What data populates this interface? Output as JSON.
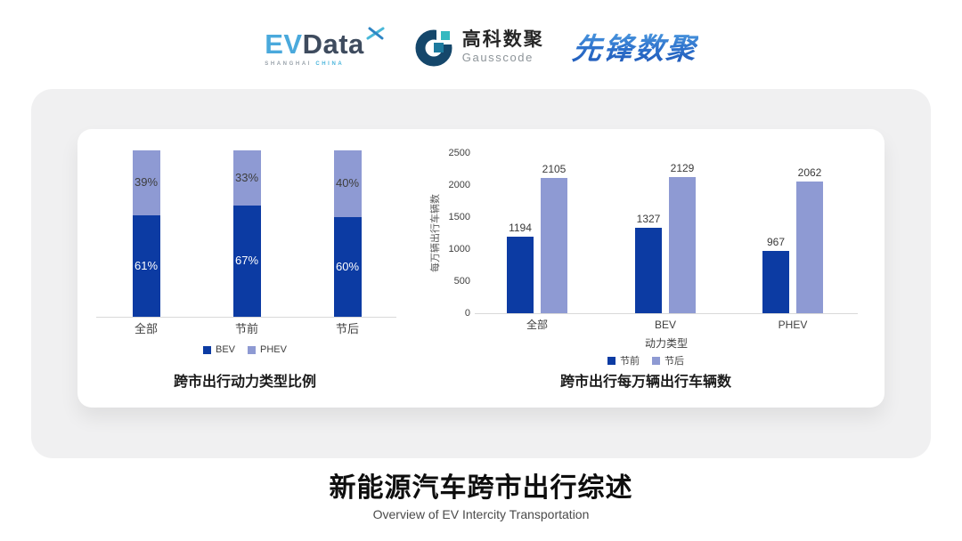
{
  "header": {
    "evdata": {
      "part_ev": "EV",
      "part_data": "Data",
      "sub_left": "SHANGHAI",
      "sub_right": "CHINA"
    },
    "gausscode": {
      "cn": "高科数聚",
      "en": "Gausscode"
    },
    "pioneer": "先锋数聚"
  },
  "chart_data": [
    {
      "type": "bar",
      "variant": "stacked-100-percent",
      "title": "跨市出行动力类型比例",
      "categories": [
        "全部",
        "节前",
        "节后"
      ],
      "series": [
        {
          "name": "BEV",
          "values": [
            61,
            67,
            60
          ],
          "color": "#0c3ba3",
          "label_color": "#ffffff"
        },
        {
          "name": "PHEV",
          "values": [
            39,
            33,
            40
          ],
          "color": "#8e9ad3",
          "label_color": "#3d3d3d"
        }
      ],
      "value_format": "percent",
      "ylim": [
        0,
        100
      ],
      "grid": false,
      "legend_position": "bottom"
    },
    {
      "type": "bar",
      "variant": "grouped",
      "title": "跨市出行每万辆出行车辆数",
      "categories": [
        "全部",
        "BEV",
        "PHEV"
      ],
      "series": [
        {
          "name": "节前",
          "values": [
            1194,
            1327,
            967
          ],
          "color": "#0c3ba3"
        },
        {
          "name": "节后",
          "values": [
            2105,
            2129,
            2062
          ],
          "color": "#8e9ad3"
        }
      ],
      "xlabel": "动力类型",
      "ylabel": "每万辆出行车辆数",
      "ylim": [
        0,
        2500
      ],
      "yticks": [
        0,
        500,
        1000,
        1500,
        2000,
        2500
      ],
      "grid": false,
      "legend_position": "bottom"
    }
  ],
  "footer": {
    "title": "新能源汽车跨市出行综述",
    "subtitle": "Overview of EV Intercity Transportation"
  },
  "colors": {
    "series_dark": "#0c3ba3",
    "series_light": "#8e9ad3",
    "axis_line": "#d9d9d9",
    "card_gray": "#f0f0f1"
  }
}
